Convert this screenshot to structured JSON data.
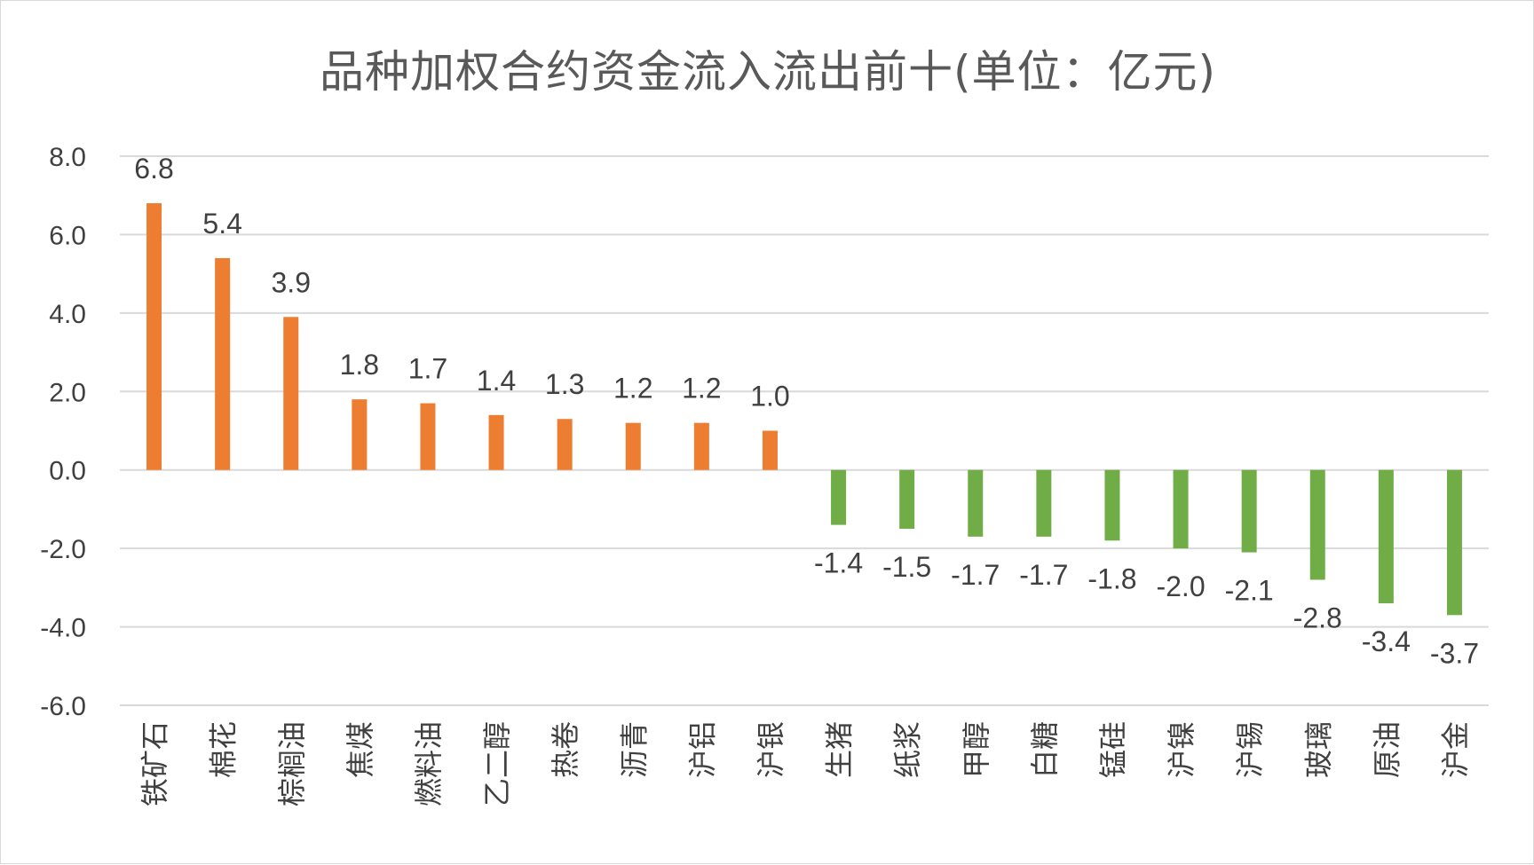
{
  "chart_data": {
    "type": "bar",
    "title": "品种加权合约资金流入流出前十(单位：亿元)",
    "xlabel": "",
    "ylabel": "",
    "ylim": [
      -6,
      8
    ],
    "yticks": [
      "8.0",
      "6.0",
      "4.0",
      "2.0",
      "0.0",
      "-2.0",
      "-4.0",
      "-6.0"
    ],
    "grid": true,
    "categories": [
      "铁矿石",
      "棉花",
      "棕榈油",
      "焦煤",
      "燃料油",
      "乙二醇",
      "热卷",
      "沥青",
      "沪铝",
      "沪银",
      "生猪",
      "纸浆",
      "甲醇",
      "白糖",
      "锰硅",
      "沪镍",
      "沪锡",
      "玻璃",
      "原油",
      "沪金"
    ],
    "values": [
      6.8,
      5.4,
      3.9,
      1.8,
      1.7,
      1.4,
      1.3,
      1.2,
      1.2,
      1.0,
      -1.4,
      -1.5,
      -1.7,
      -1.7,
      -1.8,
      -2.0,
      -2.1,
      -2.8,
      -3.4,
      -3.7
    ],
    "data_labels": [
      "6.8",
      "5.4",
      "3.9",
      "1.8",
      "1.7",
      "1.4",
      "1.3",
      "1.2",
      "1.2",
      "1.0",
      "-1.4",
      "-1.5",
      "-1.7",
      "-1.7",
      "-1.8",
      "-2.0",
      "-2.1",
      "-2.8",
      "-3.4",
      "-3.7"
    ],
    "colors": {
      "inflow": "#ed7d31",
      "outflow": "#70ad47",
      "grid": "#d9d9d9",
      "text": "#404040"
    }
  }
}
